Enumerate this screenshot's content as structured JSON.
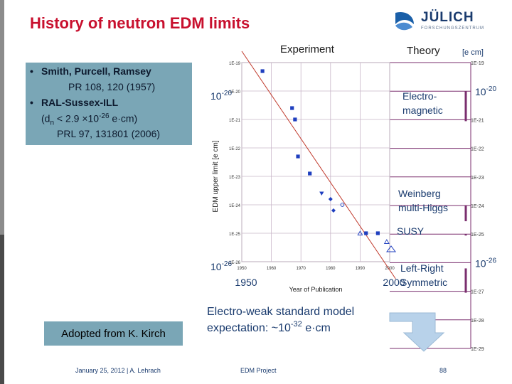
{
  "title": "History of neutron EDM limits",
  "logo": {
    "name": "JÜLICH",
    "subtitle": "FORSCHUNGSZENTRUM"
  },
  "bullets": {
    "b1_line1": "Smith, Purcell, Ramsey",
    "b1_line2": "PR 108, 120 (1957)",
    "b2_line1": "RAL-Sussex-ILL",
    "b2_line2_prefix": "(d",
    "b2_line2_sub": "n",
    "b2_line2_mid": " < 2.9 ×10",
    "b2_line2_sup": "-26",
    "b2_line2_suffix": " e·cm)",
    "b2_line3": "PRL 97, 131801 (2006)",
    "bullet_glyph": "•"
  },
  "adopted": "Adopted from K. Kirch",
  "footer": {
    "date_author": "January 25, 2012 | A. Lehrach",
    "project": "EDM Project",
    "page": "88"
  },
  "chart_data": {
    "type": "scatter",
    "xlabel": "Year of Publication",
    "ylabel": "EDM upper limit [e cm]",
    "xlim": [
      1950,
      2000
    ],
    "ylog": true,
    "ylim_exp": [
      -26,
      -19
    ],
    "x_ticks_small": [
      "1950",
      "1960",
      "1970",
      "1980",
      "1990",
      "2000"
    ],
    "x_ticks_big": [
      {
        "year": 1950,
        "label": "1950"
      },
      {
        "year": 2000,
        "label": "2000"
      }
    ],
    "y_ticks_small": [
      {
        "exp": -19,
        "label": "1E-19"
      },
      {
        "exp": -20,
        "label": "1E-20"
      },
      {
        "exp": -21,
        "label": "1E-21"
      },
      {
        "exp": -22,
        "label": "1E-22"
      },
      {
        "exp": -23,
        "label": "1E-23"
      },
      {
        "exp": -24,
        "label": "1E-24"
      },
      {
        "exp": -25,
        "label": "1E-25"
      },
      {
        "exp": -26,
        "label": "1E-26"
      }
    ],
    "y_ticks_big": [
      {
        "exp": -20,
        "base": "10",
        "sup": "-20"
      },
      {
        "exp": -26,
        "base": "10",
        "sup": "-26"
      }
    ],
    "points": [
      {
        "x": 1957,
        "exp": -19.3,
        "marker": "square"
      },
      {
        "x": 1967,
        "exp": -20.6,
        "marker": "square"
      },
      {
        "x": 1968,
        "exp": -21.0,
        "marker": "square"
      },
      {
        "x": 1969,
        "exp": -22.3,
        "marker": "square"
      },
      {
        "x": 1973,
        "exp": -22.9,
        "marker": "square"
      },
      {
        "x": 1977,
        "exp": -23.6,
        "marker": "triangle-down"
      },
      {
        "x": 1980,
        "exp": -23.8,
        "marker": "diamond"
      },
      {
        "x": 1981,
        "exp": -24.2,
        "marker": "diamond"
      },
      {
        "x": 1984,
        "exp": -24.0,
        "marker": "circle-open"
      },
      {
        "x": 1990,
        "exp": -25.0,
        "marker": "triangle-open"
      },
      {
        "x": 1992,
        "exp": -25.0,
        "marker": "square"
      },
      {
        "x": 1996,
        "exp": -25.0,
        "marker": "square"
      },
      {
        "x": 1999,
        "exp": -25.3,
        "marker": "triangle-open"
      }
    ],
    "trend_line": {
      "from": {
        "x": 1950,
        "exp": -18.6
      },
      "to": {
        "x": 2002,
        "exp": -26.6
      }
    },
    "experiment_label": "Experiment",
    "theory_label": "Theory",
    "theory_unit": "[e cm]",
    "theory_scale": [
      {
        "exp": -19,
        "label": "1E-19"
      },
      {
        "exp": -20,
        "base": "10",
        "sup": "-20"
      },
      {
        "exp": -21,
        "label": "1E-21"
      },
      {
        "exp": -22,
        "label": "1E-22"
      },
      {
        "exp": -23,
        "label": "1E-23"
      },
      {
        "exp": -24,
        "label": "1E-24"
      },
      {
        "exp": -25,
        "label": "1E-25"
      },
      {
        "exp": -26,
        "base": "10",
        "sup": "-26"
      },
      {
        "exp": -27,
        "label": "1E-27"
      },
      {
        "exp": -28,
        "label": "1E-28"
      },
      {
        "exp": -29,
        "label": "1E-29"
      }
    ],
    "theory_models": [
      {
        "line1": "Electro-",
        "line2": "magnetic",
        "band_exp": [
          -20,
          -21
        ]
      },
      {
        "line1": "Weinberg",
        "line2": "multi-Higgs",
        "band_exp": [
          -24,
          -24.5
        ]
      },
      {
        "line1": "SUSY",
        "line2": "",
        "band_exp": [
          -25,
          -25
        ]
      },
      {
        "line1": "Left-Right",
        "line2": "Symmetric",
        "band_exp": [
          -26.2,
          -27
        ]
      }
    ],
    "sm_line1": "Electro-weak standard model",
    "sm_line2_prefix": "expectation: ~10",
    "sm_line2_sup": "-32",
    "sm_line2_suffix": " e·cm",
    "colors": {
      "trend": "#c0392b",
      "points": "#1f3fbf",
      "grid": "#c9b6c9",
      "band": "#7a2e6e"
    }
  }
}
